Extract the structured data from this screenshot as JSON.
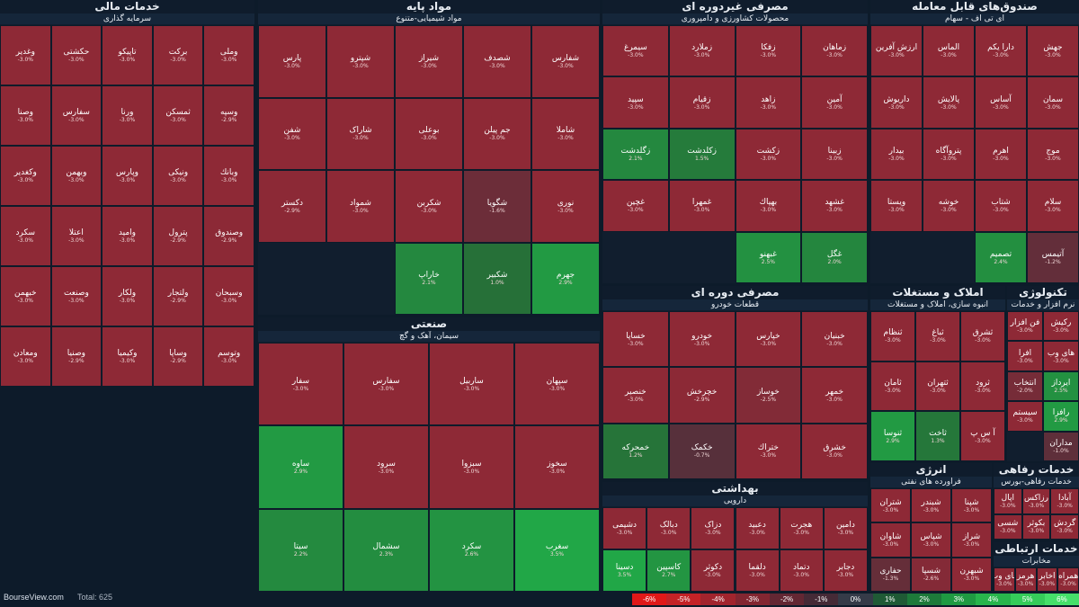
{
  "footer": {
    "brand": "BourseView.com",
    "total": "Total: 625"
  },
  "legend": [
    {
      "label": "-6%",
      "color": "#e01818"
    },
    {
      "label": "-5%",
      "color": "#c42226"
    },
    {
      "label": "-4%",
      "color": "#a1242d"
    },
    {
      "label": "-3%",
      "color": "#822631"
    },
    {
      "label": "-2%",
      "color": "#632733"
    },
    {
      "label": "-1%",
      "color": "#452a36"
    },
    {
      "label": "0%",
      "color": "#353b48"
    },
    {
      "label": "1%",
      "color": "#1f5a35"
    },
    {
      "label": "2%",
      "color": "#1d7a3a"
    },
    {
      "label": "3%",
      "color": "#1f9a42"
    },
    {
      "label": "4%",
      "color": "#28b54c"
    },
    {
      "label": "5%",
      "color": "#35cc5a"
    },
    {
      "label": "6%",
      "color": "#45e06a"
    }
  ],
  "sectors": [
    {
      "title": "خدمات مالی",
      "subtitle": "سرمایه گذاری",
      "cells": [
        {
          "s": "وملی",
          "p": -3.0
        },
        {
          "s": "بركت",
          "p": -3.0
        },
        {
          "s": "تاپیكو",
          "p": -3.0
        },
        {
          "s": "حكشتی",
          "p": -3.0
        },
        {
          "s": "وغدیر",
          "p": -3.0
        },
        {
          "s": "وسپه",
          "p": -2.9
        },
        {
          "s": "ثمسكن",
          "p": -3.0
        },
        {
          "s": "ورنا",
          "p": -3.0
        },
        {
          "s": "سفارس",
          "p": -3.0
        },
        {
          "s": "وصنا",
          "p": -3.0
        },
        {
          "s": "وبانك",
          "p": -3.0
        },
        {
          "s": "ونیكی",
          "p": -3.0
        },
        {
          "s": "وپارس",
          "p": -3.0
        },
        {
          "s": "وبهمن",
          "p": -3.0
        },
        {
          "s": "وكغدیر",
          "p": -3.0
        },
        {
          "s": "وصندوق",
          "p": -2.9
        },
        {
          "s": "پترول",
          "p": -2.9
        },
        {
          "s": "وامید",
          "p": -3.0
        },
        {
          "s": "اعتلا",
          "p": -3.0
        },
        {
          "s": "سکرد",
          "p": -3.0
        },
        {
          "s": "وسبحان",
          "p": -3.0
        },
        {
          "s": "ولتجار",
          "p": -2.9
        },
        {
          "s": "ولكار",
          "p": -3.0
        },
        {
          "s": "وصنعت",
          "p": -3.0
        },
        {
          "s": "خبهمن",
          "p": -3.0
        },
        {
          "s": "وتوسم",
          "p": -3.0
        },
        {
          "s": "وساپا",
          "p": -2.9
        },
        {
          "s": "وكیمیا",
          "p": -3.0
        },
        {
          "s": "وصنیا",
          "p": -2.9
        },
        {
          "s": "ومعادن",
          "p": -3.0
        }
      ]
    },
    {
      "title": "مواد پایه",
      "subtitle": "مواد شیمیایی-متنوع",
      "cells": [
        {
          "s": "شفارس",
          "p": -3.0
        },
        {
          "s": "شصدف",
          "p": -3.0
        },
        {
          "s": "شیراز",
          "p": -3.0
        },
        {
          "s": "شپترو",
          "p": -3.0
        },
        {
          "s": "پارس",
          "p": -3.0
        },
        {
          "s": "شاملا",
          "p": -3.0
        },
        {
          "s": "جم پیلن",
          "p": -3.0
        },
        {
          "s": "بوعلی",
          "p": -3.0
        },
        {
          "s": "شاراک",
          "p": -3.0
        },
        {
          "s": "شفن",
          "p": -3.0
        },
        {
          "s": "نوری",
          "p": -3.0
        },
        {
          "s": "شگویا",
          "p": -1.6
        },
        {
          "s": "شكربن",
          "p": -3.0
        },
        {
          "s": "شمواد",
          "p": -3.0
        },
        {
          "s": "دكستر",
          "p": -2.9
        },
        {
          "s": "جهرم",
          "p": 2.9
        },
        {
          "s": "شكبیر",
          "p": 1.0
        },
        {
          "s": "خاراپ",
          "p": 2.1
        }
      ]
    },
    {
      "title": "مصرفی غیردوره ای",
      "subtitle": "محصولات کشاورزی و دامپروری",
      "cells": [
        {
          "s": "زماهان",
          "p": -3.0
        },
        {
          "s": "زفكا",
          "p": -3.0
        },
        {
          "s": "زملارد",
          "p": -3.0
        },
        {
          "s": "سیمرغ",
          "p": -3.0
        },
        {
          "s": "آمین",
          "p": -3.0
        },
        {
          "s": "زاهد",
          "p": -3.0
        },
        {
          "s": "زقیام",
          "p": -3.0
        },
        {
          "s": "سپید",
          "p": -3.0
        },
        {
          "s": "زبینا",
          "p": -3.0
        },
        {
          "s": "زكشت",
          "p": -3.0
        },
        {
          "s": "زكلدشت",
          "p": 1.5
        },
        {
          "s": "زگلدشت",
          "p": 2.1
        },
        {
          "s": "غشهد",
          "p": -3.0
        },
        {
          "s": "بهپاك",
          "p": -3.0
        },
        {
          "s": "غمهرا",
          "p": -3.0
        },
        {
          "s": "غچین",
          "p": -3.0
        },
        {
          "s": "غگل",
          "p": 2.0
        },
        {
          "s": "غبهنو",
          "p": 2.5
        }
      ]
    },
    {
      "title": "صندوق‌های قابل معامله",
      "subtitle": "ای تی اف - سهام",
      "cells": [
        {
          "s": "جهش",
          "p": -3.0
        },
        {
          "s": "دارا یکم",
          "p": -3.0
        },
        {
          "s": "الماس",
          "p": -3.0
        },
        {
          "s": "ارزش آفرین",
          "p": -3.0
        },
        {
          "s": "سمان",
          "p": -3.0
        },
        {
          "s": "آساس",
          "p": -3.0
        },
        {
          "s": "پالایش",
          "p": -3.0
        },
        {
          "s": "داریوش",
          "p": -3.0
        },
        {
          "s": "موج",
          "p": -3.0
        },
        {
          "s": "اهرم",
          "p": -3.0
        },
        {
          "s": "پتروآگاه",
          "p": -3.0
        },
        {
          "s": "بیدار",
          "p": -3.0
        },
        {
          "s": "سلام",
          "p": -3.0
        },
        {
          "s": "شتاب",
          "p": -3.0
        },
        {
          "s": "خوشه",
          "p": -3.0
        },
        {
          "s": "ویستا",
          "p": -3.0
        },
        {
          "s": "آتیمس",
          "p": -1.2
        },
        {
          "s": "تصمیم",
          "p": 2.4
        }
      ]
    },
    {
      "title": "صنعتی",
      "subtitle": "سیمان، آهک و گچ",
      "cells": [
        {
          "s": "سپهان",
          "p": -3.0
        },
        {
          "s": "ساربیل",
          "p": -3.0
        },
        {
          "s": "سفارس",
          "p": -3.0
        },
        {
          "s": "سفار",
          "p": -3.0
        },
        {
          "s": "سخوز",
          "p": -3.0
        },
        {
          "s": "سبزوا",
          "p": -3.0
        },
        {
          "s": "سرود",
          "p": -3.0
        },
        {
          "s": "ساوه",
          "p": 2.9
        },
        {
          "s": "سغرب",
          "p": 3.5
        },
        {
          "s": "سكرد",
          "p": 2.6
        },
        {
          "s": "سشمال",
          "p": 2.3
        },
        {
          "s": "سیتا",
          "p": 2.2
        }
      ]
    },
    {
      "title": "مصرفی دوره ای",
      "subtitle": "قطعات خودرو",
      "cells": [
        {
          "s": "خبنیان",
          "p": -3.0
        },
        {
          "s": "خپارس",
          "p": -3.0
        },
        {
          "s": "خودرو",
          "p": -3.0
        },
        {
          "s": "خساپا",
          "p": -3.0
        },
        {
          "s": "خمهر",
          "p": -3.0
        },
        {
          "s": "خوساز",
          "p": -2.5
        },
        {
          "s": "خچرخش",
          "p": -2.9
        },
        {
          "s": "خنصیر",
          "p": -3.0
        },
        {
          "s": "خشرق",
          "p": -3.0
        },
        {
          "s": "ختراك",
          "p": -3.0
        },
        {
          "s": "خکمک",
          "p": -0.7
        },
        {
          "s": "خمحرکه",
          "p": 1.2
        }
      ]
    },
    {
      "title": "املاک و مستغلات",
      "subtitle": "انبوه سازی، املاک و مستغلات",
      "cells": [
        {
          "s": "ثشرق",
          "p": -3.0
        },
        {
          "s": "ثباغ",
          "p": -3.0
        },
        {
          "s": "ثنظام",
          "p": -3.0
        },
        {
          "s": "ثرود",
          "p": -3.0
        },
        {
          "s": "ثتهران",
          "p": -3.0
        },
        {
          "s": "ثامان",
          "p": -3.0
        },
        {
          "s": "آ س پ",
          "p": -3.0
        },
        {
          "s": "ثاخت",
          "p": 1.3
        },
        {
          "s": "ثنوسا",
          "p": 2.9
        }
      ]
    },
    {
      "title": "تکنولوژی",
      "subtitle": "نرم افزار و خدمات",
      "cells": [
        {
          "s": "رکیش",
          "p": -3.0
        },
        {
          "s": "فن افزار",
          "p": -3.0
        },
        {
          "s": "های وب",
          "p": -3.0
        },
        {
          "s": "افرا",
          "p": -3.0
        },
        {
          "s": "ایرداز",
          "p": 2.5
        },
        {
          "s": "انتخاب",
          "p": -2.0
        },
        {
          "s": "رافزا",
          "p": 2.9
        },
        {
          "s": "سیستم",
          "p": -3.0
        },
        {
          "s": "مداران",
          "p": -1.0
        }
      ]
    },
    {
      "title": "بهداشتی",
      "subtitle": "دارویی",
      "cells": [
        {
          "s": "دامین",
          "p": -3.0
        },
        {
          "s": "هجرت",
          "p": -3.0
        },
        {
          "s": "دعبید",
          "p": -3.0
        },
        {
          "s": "دزاک",
          "p": -3.0
        },
        {
          "s": "دبالک",
          "p": -3.0
        },
        {
          "s": "دشیمی",
          "p": -3.0
        },
        {
          "s": "دجابر",
          "p": -3.0
        },
        {
          "s": "دتماد",
          "p": -3.0
        },
        {
          "s": "دلقما",
          "p": -3.0
        },
        {
          "s": "دكوثر",
          "p": -3.0
        },
        {
          "s": "كاسپین",
          "p": 2.7
        },
        {
          "s": "دسینا",
          "p": 3.5
        }
      ]
    },
    {
      "title": "انرژی",
      "subtitle": "فراورده های نفتی",
      "cells": [
        {
          "s": "شپنا",
          "p": -3.0
        },
        {
          "s": "شبندر",
          "p": -3.0
        },
        {
          "s": "شتران",
          "p": -3.0
        },
        {
          "s": "شراز",
          "p": -3.0
        },
        {
          "s": "شپاس",
          "p": -3.0
        },
        {
          "s": "شاوان",
          "p": -3.0
        },
        {
          "s": "شبهرن",
          "p": -3.0
        },
        {
          "s": "شسپا",
          "p": -2.6
        },
        {
          "s": "حفاری",
          "p": -1.3
        }
      ]
    },
    {
      "title": "خدمات رفاهی",
      "subtitle": "خدمات رفاهی-بورس",
      "cells": [
        {
          "s": "آبادا",
          "p": -3.0
        },
        {
          "s": "رزاكس",
          "p": -3.0
        },
        {
          "s": "اپال",
          "p": -3.0
        },
        {
          "s": "گردش",
          "p": -3.0
        },
        {
          "s": "بكوثر",
          "p": -3.0
        },
        {
          "s": "شسی",
          "p": -3.0
        }
      ]
    },
    {
      "title": "خدمات ارتباطی",
      "subtitle": "مخابرات",
      "cells": [
        {
          "s": "همراه",
          "p": -3.0
        },
        {
          "s": "اخابر",
          "p": -3.0
        },
        {
          "s": "هرمز",
          "p": -3.0
        },
        {
          "s": "های وب",
          "p": -3.0
        }
      ]
    }
  ]
}
